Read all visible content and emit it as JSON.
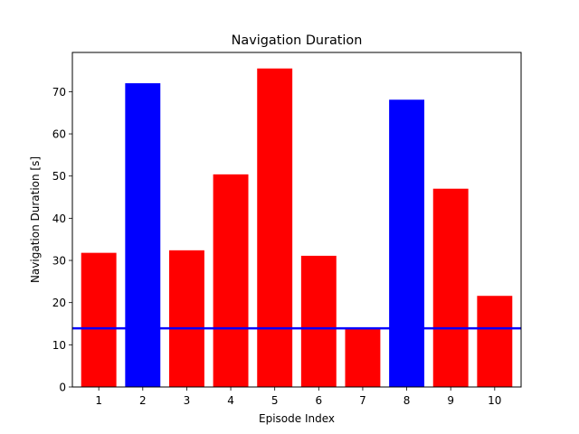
{
  "chart_data": {
    "type": "bar",
    "title": "Navigation Duration",
    "xlabel": "Episode Index",
    "ylabel": "Navigation Duration [s]",
    "categories": [
      "1",
      "2",
      "3",
      "4",
      "5",
      "6",
      "7",
      "8",
      "9",
      "10"
    ],
    "values": [
      31.8,
      72.0,
      32.4,
      50.4,
      75.5,
      31.1,
      13.8,
      68.1,
      47.0,
      21.6
    ],
    "bar_colors": [
      "#ff0000",
      "#0000ff",
      "#ff0000",
      "#ff0000",
      "#ff0000",
      "#ff0000",
      "#ff0000",
      "#0000ff",
      "#ff0000",
      "#ff0000"
    ],
    "ylim": [
      0,
      79.3
    ],
    "yticks": [
      0,
      10,
      20,
      30,
      40,
      50,
      60,
      70
    ],
    "ytick_labels": [
      "0",
      "10",
      "20",
      "30",
      "40",
      "50",
      "60",
      "70"
    ],
    "reference_line": {
      "y": 13.9,
      "color": "#0000ff"
    },
    "grid": false
  }
}
